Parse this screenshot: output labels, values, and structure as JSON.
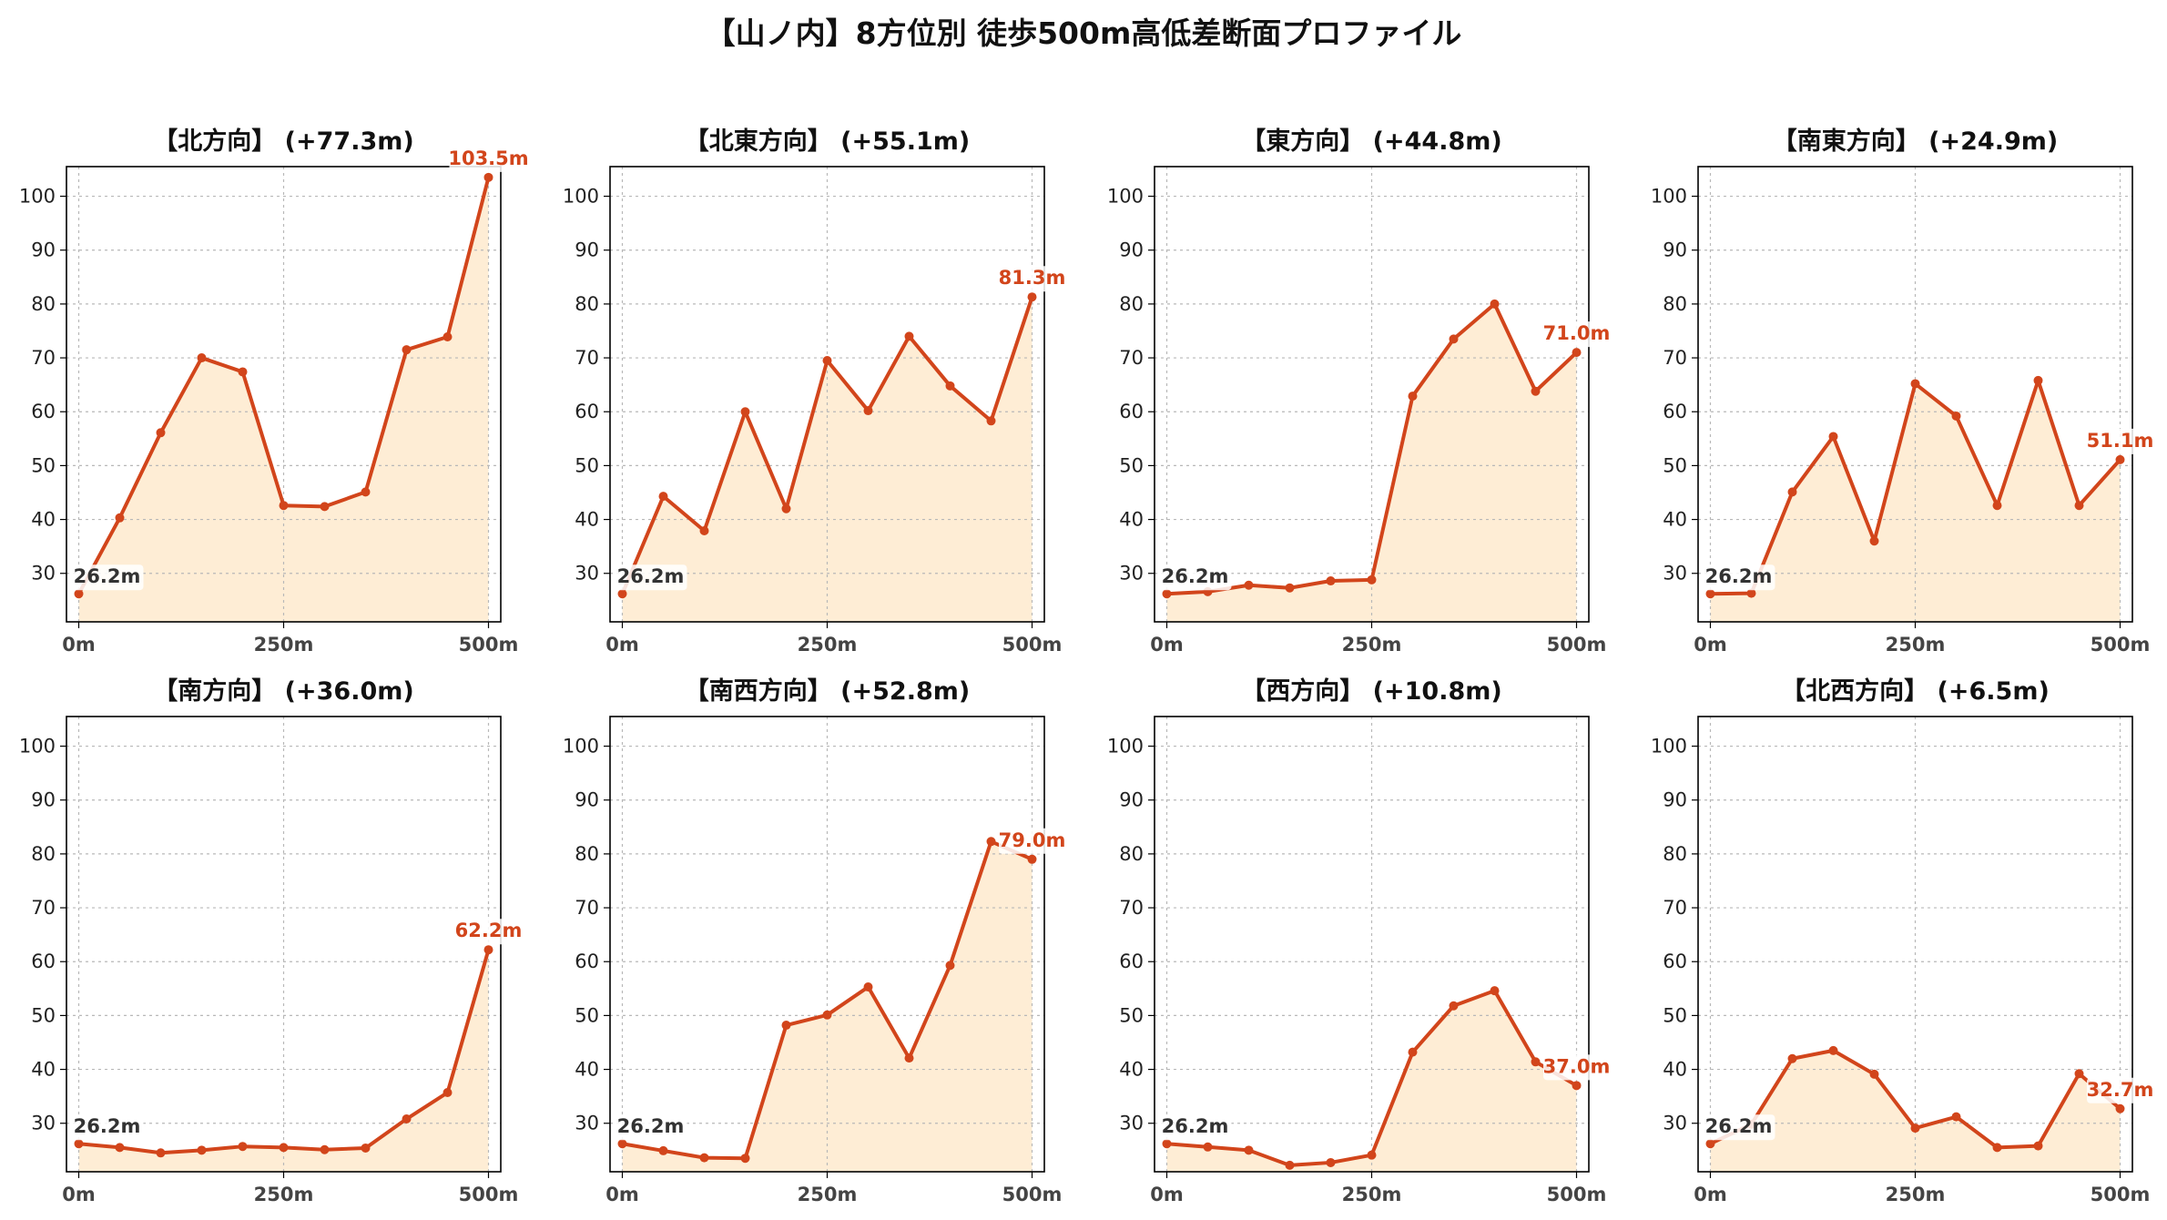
{
  "title": "【山ノ内】8方位別 徒歩500m高低差断面プロファイル",
  "colors": {
    "line": "#d2451b",
    "fill": "#feedd5",
    "grid": "#b8b8b8"
  },
  "chart_data": [
    {
      "type": "area",
      "title": "【北方向】 (+77.3m)",
      "x": [
        0,
        50,
        100,
        150,
        200,
        250,
        300,
        350,
        400,
        450,
        500
      ],
      "values": [
        26.2,
        40.3,
        56.1,
        70.0,
        67.4,
        42.6,
        42.4,
        45.1,
        71.5,
        73.9,
        103.5
      ],
      "start_label": "26.2m",
      "end_label": "103.5m",
      "xticks": [
        "0m",
        "250m",
        "500m"
      ],
      "yticks": [
        30,
        40,
        50,
        60,
        70,
        80,
        90,
        100
      ],
      "xlim": [
        -15,
        515
      ],
      "ylim": [
        21,
        105.5
      ]
    },
    {
      "type": "area",
      "title": "【北東方向】 (+55.1m)",
      "x": [
        0,
        50,
        100,
        150,
        200,
        250,
        300,
        350,
        400,
        450,
        500
      ],
      "values": [
        26.2,
        44.3,
        37.9,
        60.0,
        42.0,
        69.5,
        60.2,
        74.0,
        64.8,
        58.3,
        81.3
      ],
      "start_label": "26.2m",
      "end_label": "81.3m",
      "xticks": [
        "0m",
        "250m",
        "500m"
      ],
      "yticks": [
        30,
        40,
        50,
        60,
        70,
        80,
        90,
        100
      ],
      "xlim": [
        -15,
        515
      ],
      "ylim": [
        21,
        105.5
      ]
    },
    {
      "type": "area",
      "title": "【東方向】 (+44.8m)",
      "x": [
        0,
        50,
        100,
        150,
        200,
        250,
        300,
        350,
        400,
        450,
        500
      ],
      "values": [
        26.2,
        26.6,
        27.8,
        27.3,
        28.6,
        28.8,
        62.9,
        73.5,
        80.0,
        63.8,
        71.0
      ],
      "start_label": "26.2m",
      "end_label": "71.0m",
      "xticks": [
        "0m",
        "250m",
        "500m"
      ],
      "yticks": [
        30,
        40,
        50,
        60,
        70,
        80,
        90,
        100
      ],
      "xlim": [
        -15,
        515
      ],
      "ylim": [
        21,
        105.5
      ]
    },
    {
      "type": "area",
      "title": "【南東方向】 (+24.9m)",
      "x": [
        0,
        50,
        100,
        150,
        200,
        250,
        300,
        350,
        400,
        450,
        500
      ],
      "values": [
        26.2,
        26.3,
        45.1,
        55.4,
        36.0,
        65.2,
        59.2,
        42.6,
        65.8,
        42.6,
        51.1
      ],
      "start_label": "26.2m",
      "end_label": "51.1m",
      "xticks": [
        "0m",
        "250m",
        "500m"
      ],
      "yticks": [
        30,
        40,
        50,
        60,
        70,
        80,
        90,
        100
      ],
      "xlim": [
        -15,
        515
      ],
      "ylim": [
        21,
        105.5
      ]
    },
    {
      "type": "area",
      "title": "【南方向】 (+36.0m)",
      "x": [
        0,
        50,
        100,
        150,
        200,
        250,
        300,
        350,
        400,
        450,
        500
      ],
      "values": [
        26.2,
        25.5,
        24.5,
        25.0,
        25.7,
        25.5,
        25.1,
        25.4,
        30.8,
        35.7,
        62.2
      ],
      "start_label": "26.2m",
      "end_label": "62.2m",
      "xticks": [
        "0m",
        "250m",
        "500m"
      ],
      "yticks": [
        30,
        40,
        50,
        60,
        70,
        80,
        90,
        100
      ],
      "xlim": [
        -15,
        515
      ],
      "ylim": [
        21,
        105.5
      ]
    },
    {
      "type": "area",
      "title": "【南西方向】 (+52.8m)",
      "x": [
        0,
        50,
        100,
        150,
        200,
        250,
        300,
        350,
        400,
        450,
        500
      ],
      "values": [
        26.2,
        24.9,
        23.6,
        23.5,
        48.2,
        50.1,
        55.3,
        42.1,
        59.3,
        82.3,
        79.0
      ],
      "start_label": "26.2m",
      "end_label": "79.0m",
      "xticks": [
        "0m",
        "250m",
        "500m"
      ],
      "yticks": [
        30,
        40,
        50,
        60,
        70,
        80,
        90,
        100
      ],
      "xlim": [
        -15,
        515
      ],
      "ylim": [
        21,
        105.5
      ]
    },
    {
      "type": "area",
      "title": "【西方向】 (+10.8m)",
      "x": [
        0,
        50,
        100,
        150,
        200,
        250,
        300,
        350,
        400,
        450,
        500
      ],
      "values": [
        26.2,
        25.6,
        25.0,
        22.2,
        22.7,
        24.1,
        43.2,
        51.8,
        54.6,
        41.4,
        37.0
      ],
      "start_label": "26.2m",
      "end_label": "37.0m",
      "xticks": [
        "0m",
        "250m",
        "500m"
      ],
      "yticks": [
        30,
        40,
        50,
        60,
        70,
        80,
        90,
        100
      ],
      "xlim": [
        -15,
        515
      ],
      "ylim": [
        21,
        105.5
      ]
    },
    {
      "type": "area",
      "title": "【北西方向】 (+6.5m)",
      "x": [
        0,
        50,
        100,
        150,
        200,
        250,
        300,
        350,
        400,
        450,
        500
      ],
      "values": [
        26.2,
        29.8,
        42.0,
        43.5,
        39.1,
        29.1,
        31.2,
        25.5,
        25.8,
        39.2,
        32.7
      ],
      "start_label": "26.2m",
      "end_label": "32.7m",
      "xticks": [
        "0m",
        "250m",
        "500m"
      ],
      "yticks": [
        30,
        40,
        50,
        60,
        70,
        80,
        90,
        100
      ],
      "xlim": [
        -15,
        515
      ],
      "ylim": [
        21,
        105.5
      ]
    }
  ]
}
